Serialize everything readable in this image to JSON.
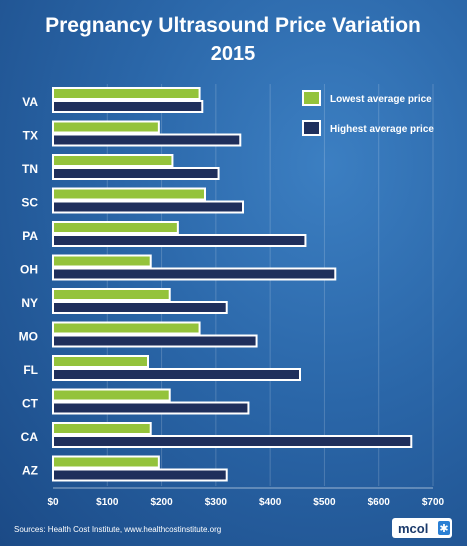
{
  "chart_data": {
    "type": "bar",
    "orientation": "horizontal",
    "title": "Pregnancy Ultrasound Price Variation",
    "subtitle": "2015",
    "categories": [
      "VA",
      "TX",
      "TN",
      "SC",
      "PA",
      "OH",
      "NY",
      "MO",
      "FL",
      "CT",
      "CA",
      "AZ"
    ],
    "series": [
      {
        "name": "Lowest average price",
        "color": "#94c33b",
        "values": [
          270,
          195,
          220,
          280,
          230,
          180,
          215,
          270,
          175,
          215,
          180,
          195
        ]
      },
      {
        "name": "Highest average price",
        "color": "#1f2f5c",
        "values": [
          275,
          345,
          305,
          350,
          465,
          520,
          320,
          375,
          455,
          360,
          660,
          320
        ]
      }
    ],
    "x_ticks": [
      "$0",
      "$100",
      "$200",
      "$300",
      "$400",
      "$500",
      "$600",
      "$700"
    ],
    "xlim": [
      0,
      700
    ],
    "grid": true,
    "legend_position": "top-right"
  },
  "source": "Sources:  Health Cost Institute, www.healthcostinstitute.org",
  "logo": "mcol"
}
